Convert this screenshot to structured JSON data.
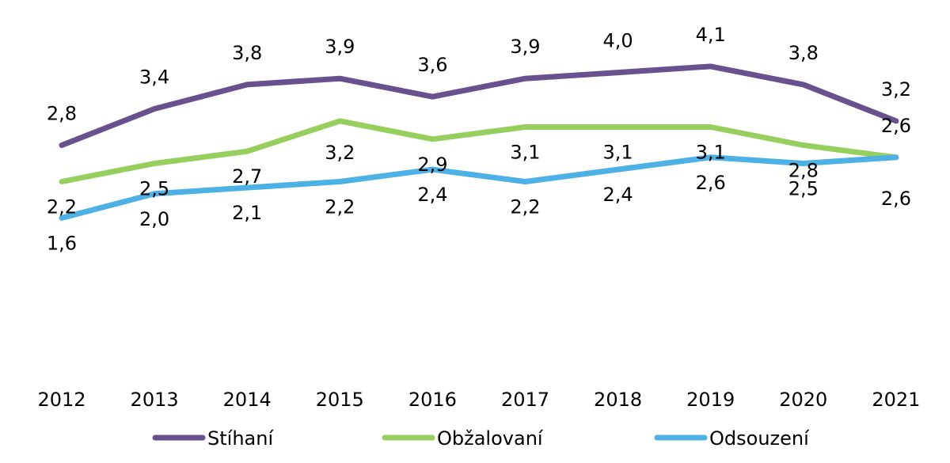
{
  "chart_data": {
    "type": "line",
    "categories": [
      "2012",
      "2013",
      "2014",
      "2015",
      "2016",
      "2017",
      "2018",
      "2019",
      "2020",
      "2021"
    ],
    "series": [
      {
        "name": "Stíhaní",
        "color": "#67518f",
        "values": [
          2.8,
          3.4,
          3.8,
          3.9,
          3.6,
          3.9,
          4.0,
          4.1,
          3.8,
          3.2
        ],
        "labels": [
          "2,8",
          "3,4",
          "3,8",
          "3,9",
          "3,6",
          "3,9",
          "4,0",
          "4,1",
          "3,8",
          "3,2"
        ]
      },
      {
        "name": "Obžalovaní",
        "color": "#97cf5f",
        "values": [
          2.2,
          2.5,
          2.7,
          3.2,
          2.9,
          3.1,
          3.1,
          3.1,
          2.8,
          2.6
        ],
        "labels": [
          "2,2",
          "2,5",
          "2,7",
          "3,2",
          "2,9",
          "3,1",
          "3,1",
          "3,1",
          "2,8",
          "2,6"
        ]
      },
      {
        "name": "Odsouzení",
        "color": "#4db1e6",
        "values": [
          1.6,
          2.0,
          2.1,
          2.2,
          2.4,
          2.2,
          2.4,
          2.6,
          2.5,
          2.6
        ],
        "labels": [
          "1,6",
          "2,0",
          "2,1",
          "2,2",
          "2,4",
          "2,2",
          "2,4",
          "2,6",
          "2,5",
          "2,6"
        ]
      }
    ],
    "grid": false,
    "legend_position": "bottom"
  }
}
